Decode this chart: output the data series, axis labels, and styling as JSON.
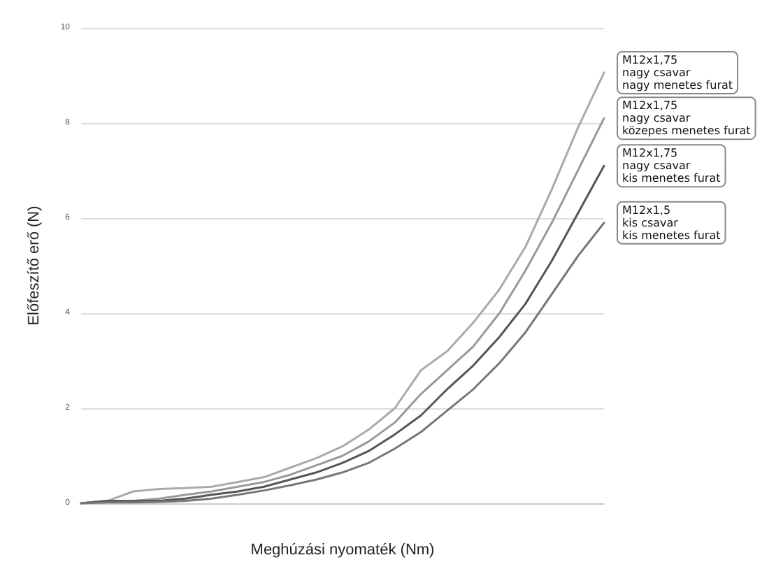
{
  "chart_data": {
    "type": "line",
    "xlabel": "Meghúzási nyomaték (Nm)",
    "ylabel": "Előfeszítő erő (N)",
    "categories": [
      null,
      null,
      null,
      null,
      null,
      null,
      null,
      null,
      null,
      null,
      null,
      null,
      null,
      null,
      null,
      null,
      null,
      null,
      null,
      null,
      null
    ],
    "ylim": [
      0,
      10
    ],
    "yticks": [
      0,
      2,
      4,
      6,
      8,
      10
    ],
    "grid": "y",
    "legend": false,
    "marker": "none",
    "line_style": "solid",
    "series": [
      {
        "name": "M12x1,75\nnagy csavar\nnagy menetes furat",
        "color": "#aaaaaa",
        "values": [
          0,
          0.05,
          0.25,
          0.3,
          0.32,
          0.35,
          0.45,
          0.55,
          0.75,
          0.95,
          1.2,
          1.55,
          2.0,
          2.8,
          3.2,
          3.8,
          4.5,
          5.4,
          6.6,
          7.9,
          9.06
        ]
      },
      {
        "name": "M12x1,75\nnagy csavar\nközepes menetes furat",
        "color": "#999999",
        "values": [
          0,
          0.05,
          0.05,
          0.1,
          0.18,
          0.25,
          0.35,
          0.45,
          0.6,
          0.8,
          1.0,
          1.3,
          1.7,
          2.3,
          2.8,
          3.3,
          4.0,
          4.9,
          5.9,
          7.0,
          8.1
        ]
      },
      {
        "name": "M12x1,75\nnagy csavar\nkis menetes furat",
        "color": "#555555",
        "values": [
          0,
          0.05,
          0.05,
          0.05,
          0.1,
          0.18,
          0.25,
          0.35,
          0.5,
          0.65,
          0.85,
          1.1,
          1.45,
          1.85,
          2.4,
          2.9,
          3.5,
          4.2,
          5.1,
          6.1,
          7.1
        ]
      },
      {
        "name": "M12x1,5\nkis csavar\nkis menetes furat",
        "color": "#777777",
        "values": [
          0,
          0.02,
          0.02,
          0.03,
          0.05,
          0.1,
          0.18,
          0.27,
          0.38,
          0.5,
          0.65,
          0.85,
          1.15,
          1.5,
          1.95,
          2.4,
          2.95,
          3.6,
          4.4,
          5.2,
          5.9
        ]
      }
    ]
  }
}
